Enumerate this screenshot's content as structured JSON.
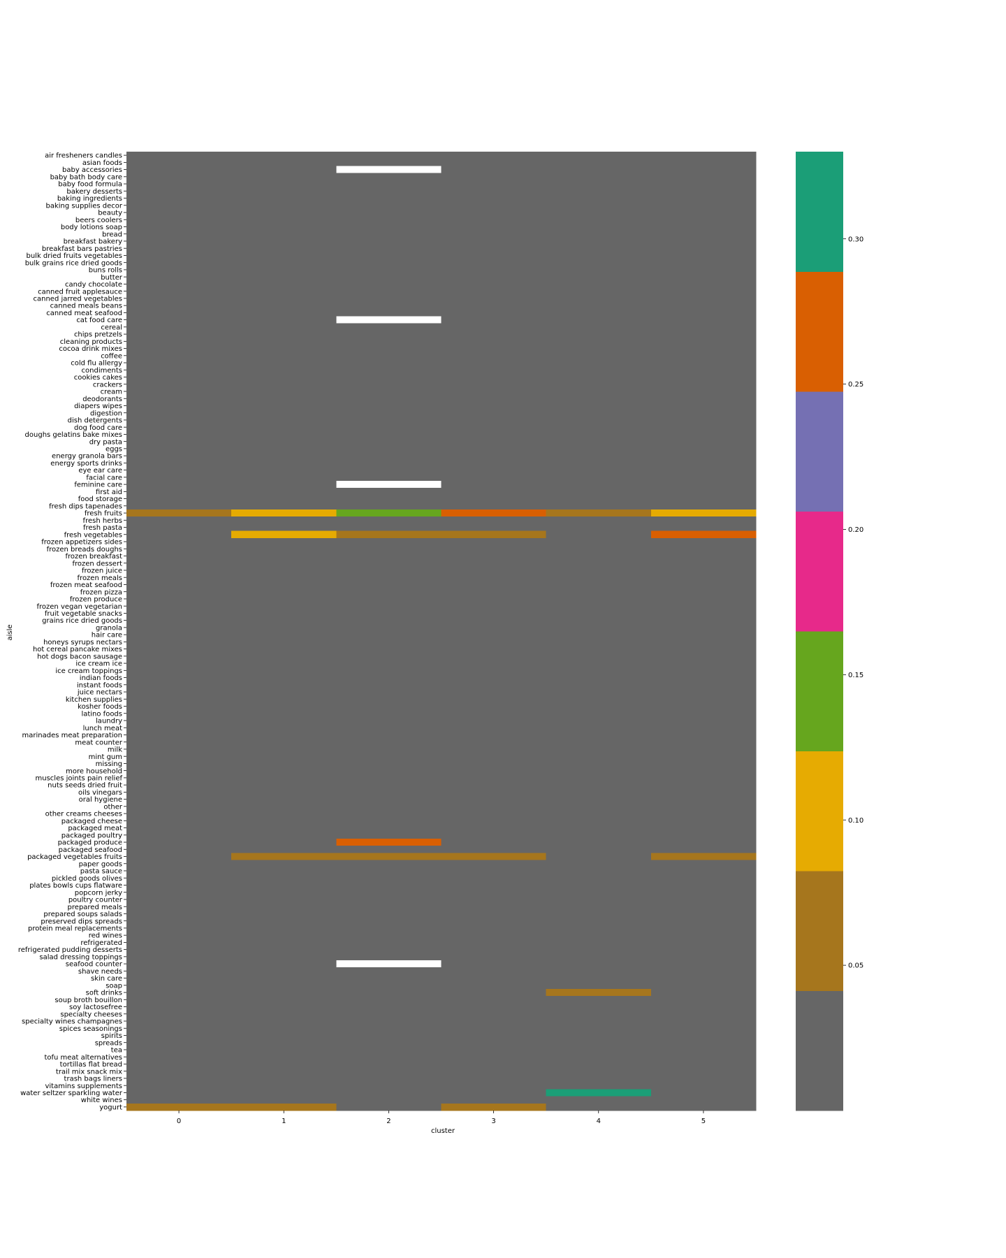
{
  "chart_data": {
    "type": "heatmap",
    "xlabel": "cluster",
    "ylabel": "aisle",
    "x_categories": [
      "0",
      "1",
      "2",
      "3",
      "4",
      "5"
    ],
    "y_categories": [
      "air fresheners candles",
      "asian foods",
      "baby accessories",
      "baby bath body care",
      "baby food formula",
      "bakery desserts",
      "baking ingredients",
      "baking supplies decor",
      "beauty",
      "beers coolers",
      "body lotions soap",
      "bread",
      "breakfast bakery",
      "breakfast bars pastries",
      "bulk dried fruits vegetables",
      "bulk grains rice dried goods",
      "buns rolls",
      "butter",
      "candy chocolate",
      "canned fruit applesauce",
      "canned jarred vegetables",
      "canned meals beans",
      "canned meat seafood",
      "cat food care",
      "cereal",
      "chips pretzels",
      "cleaning products",
      "cocoa drink mixes",
      "coffee",
      "cold flu allergy",
      "condiments",
      "cookies cakes",
      "crackers",
      "cream",
      "deodorants",
      "diapers wipes",
      "digestion",
      "dish detergents",
      "dog food care",
      "doughs gelatins bake mixes",
      "dry pasta",
      "eggs",
      "energy granola bars",
      "energy sports drinks",
      "eye ear care",
      "facial care",
      "feminine care",
      "first aid",
      "food storage",
      "fresh dips tapenades",
      "fresh fruits",
      "fresh herbs",
      "fresh pasta",
      "fresh vegetables",
      "frozen appetizers sides",
      "frozen breads doughs",
      "frozen breakfast",
      "frozen dessert",
      "frozen juice",
      "frozen meals",
      "frozen meat seafood",
      "frozen pizza",
      "frozen produce",
      "frozen vegan vegetarian",
      "fruit vegetable snacks",
      "grains rice dried goods",
      "granola",
      "hair care",
      "honeys syrups nectars",
      "hot cereal pancake mixes",
      "hot dogs bacon sausage",
      "ice cream ice",
      "ice cream toppings",
      "indian foods",
      "instant foods",
      "juice nectars",
      "kitchen supplies",
      "kosher foods",
      "latino foods",
      "laundry",
      "lunch meat",
      "marinades meat preparation",
      "meat counter",
      "milk",
      "mint gum",
      "missing",
      "more household",
      "muscles joints pain relief",
      "nuts seeds dried fruit",
      "oils vinegars",
      "oral hygiene",
      "other",
      "other creams cheeses",
      "packaged cheese",
      "packaged meat",
      "packaged poultry",
      "packaged produce",
      "packaged seafood",
      "packaged vegetables fruits",
      "paper goods",
      "pasta sauce",
      "pickled goods olives",
      "plates bowls cups flatware",
      "popcorn jerky",
      "poultry counter",
      "prepared meals",
      "prepared soups salads",
      "preserved dips spreads",
      "protein meal replacements",
      "red wines",
      "refrigerated",
      "refrigerated pudding desserts",
      "salad dressing toppings",
      "seafood counter",
      "shave needs",
      "skin care",
      "soap",
      "soft drinks",
      "soup broth bouillon",
      "soy lactosefree",
      "specialty cheeses",
      "specialty wines champagnes",
      "spices seasonings",
      "spirits",
      "spreads",
      "tea",
      "tofu meat alternatives",
      "tortillas flat bread",
      "trail mix snack mix",
      "trash bags liners",
      "vitamins supplements",
      "water seltzer sparkling water",
      "white wines",
      "yogurt"
    ],
    "default_value": 0.0,
    "missing_cells": [
      {
        "aisle": "baby accessories",
        "cluster": "2"
      },
      {
        "aisle": "cat food care",
        "cluster": "2"
      },
      {
        "aisle": "feminine care",
        "cluster": "2"
      },
      {
        "aisle": "seafood counter",
        "cluster": "2"
      }
    ],
    "nonzero_cells": [
      {
        "aisle": "fresh fruits",
        "cluster": "0",
        "value": 0.07
      },
      {
        "aisle": "fresh fruits",
        "cluster": "1",
        "value": 0.1
      },
      {
        "aisle": "fresh fruits",
        "cluster": "2",
        "value": 0.15
      },
      {
        "aisle": "fresh fruits",
        "cluster": "3",
        "value": 0.26
      },
      {
        "aisle": "fresh fruits",
        "cluster": "4",
        "value": 0.07
      },
      {
        "aisle": "fresh fruits",
        "cluster": "5",
        "value": 0.1
      },
      {
        "aisle": "fresh vegetables",
        "cluster": "1",
        "value": 0.1
      },
      {
        "aisle": "fresh vegetables",
        "cluster": "2",
        "value": 0.07
      },
      {
        "aisle": "fresh vegetables",
        "cluster": "3",
        "value": 0.07
      },
      {
        "aisle": "fresh vegetables",
        "cluster": "5",
        "value": 0.26
      },
      {
        "aisle": "packaged produce",
        "cluster": "2",
        "value": 0.26
      },
      {
        "aisle": "packaged vegetables fruits",
        "cluster": "1",
        "value": 0.07
      },
      {
        "aisle": "packaged vegetables fruits",
        "cluster": "2",
        "value": 0.07
      },
      {
        "aisle": "packaged vegetables fruits",
        "cluster": "3",
        "value": 0.07
      },
      {
        "aisle": "packaged vegetables fruits",
        "cluster": "5",
        "value": 0.07
      },
      {
        "aisle": "soft drinks",
        "cluster": "4",
        "value": 0.07
      },
      {
        "aisle": "water seltzer sparkling water",
        "cluster": "4",
        "value": 0.3
      },
      {
        "aisle": "yogurt",
        "cluster": "0",
        "value": 0.07
      },
      {
        "aisle": "yogurt",
        "cluster": "1",
        "value": 0.07
      },
      {
        "aisle": "yogurt",
        "cluster": "3",
        "value": 0.07
      }
    ],
    "colorbar": {
      "vmin": 0.0,
      "vmax": 0.33,
      "ticks": [
        0.05,
        0.1,
        0.15,
        0.2,
        0.25,
        0.3
      ],
      "tick_labels": [
        "0.05",
        "0.10",
        "0.15",
        "0.20",
        "0.25",
        "0.30"
      ],
      "colors": [
        "#666666",
        "#a6761d",
        "#e6ab02",
        "#66a61e",
        "#e7298a",
        "#7570b3",
        "#d95f02",
        "#1b9e77"
      ]
    },
    "missing_color": "#ffffff"
  }
}
